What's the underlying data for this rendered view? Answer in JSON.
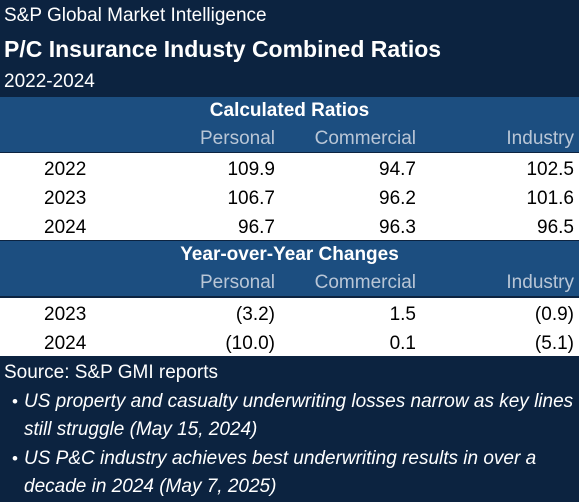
{
  "header": {
    "source_org": "S&P Global Market Intelligence",
    "title": "P/C Insurance Industy Combined Ratios",
    "years": "2022-2024"
  },
  "ratios_section": {
    "title": "Calculated Ratios",
    "columns": [
      "Personal",
      "Commercial",
      "Industry"
    ],
    "rows": [
      {
        "year": "2022",
        "personal": "109.9",
        "commercial": "94.7",
        "industry": "102.5"
      },
      {
        "year": "2023",
        "personal": "106.7",
        "commercial": "96.2",
        "industry": "101.6"
      },
      {
        "year": "2024",
        "personal": "96.7",
        "commercial": "96.3",
        "industry": "96.5"
      }
    ]
  },
  "yoy_section": {
    "title": "Year-over-Year Changes",
    "columns": [
      "Personal",
      "Commercial",
      "Industry"
    ],
    "rows": [
      {
        "year": "2023",
        "personal": "(3.2)",
        "commercial": "1.5",
        "industry": "(0.9)"
      },
      {
        "year": "2024",
        "personal": "(10.0)",
        "commercial": "0.1",
        "industry": "(5.1)"
      }
    ]
  },
  "footer": {
    "source": "Source: S&P GMI reports",
    "bullets": [
      {
        "line1": "US property and casualty underwriting losses narrow as key lines",
        "line2": "still struggle (May 15, 2024)"
      },
      {
        "line1": "US P&C industry achieves best underwriting results in over a",
        "line2": "decade in 2024 (May 7, 2025)"
      }
    ]
  },
  "colors": {
    "background": "#0c2340",
    "section_band": "#1c4e80",
    "column_header_text": "#b9c6d6",
    "data_background": "#ffffff",
    "data_text": "#000000"
  }
}
